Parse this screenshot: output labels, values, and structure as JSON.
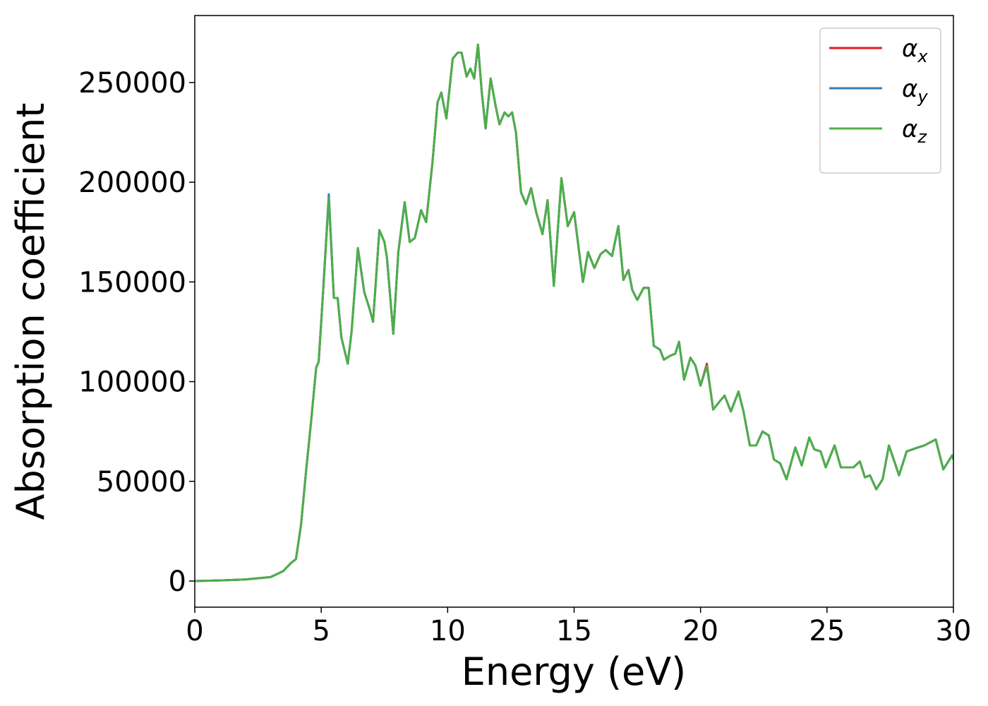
{
  "chart_data": {
    "type": "line",
    "xlabel": "Energy (eV)",
    "ylabel": "Absorption coefficient",
    "x": [
      0,
      1,
      2,
      3,
      3.5,
      3.8,
      4,
      4.2,
      4.4,
      4.6,
      4.8,
      4.9,
      5.05,
      5.3,
      5.5,
      5.65,
      5.8,
      6.05,
      6.2,
      6.45,
      6.7,
      6.9,
      7.05,
      7.3,
      7.5,
      7.6,
      7.85,
      8.05,
      8.3,
      8.5,
      8.7,
      8.95,
      9.15,
      9.4,
      9.6,
      9.75,
      9.95,
      10.2,
      10.4,
      10.55,
      10.75,
      10.9,
      11.05,
      11.2,
      11.35,
      11.5,
      11.7,
      11.9,
      12.05,
      12.25,
      12.4,
      12.55,
      12.7,
      12.9,
      13.1,
      13.3,
      13.5,
      13.75,
      13.95,
      14.2,
      14.5,
      14.75,
      15,
      15.2,
      15.35,
      15.55,
      15.8,
      16.05,
      16.25,
      16.5,
      16.75,
      16.95,
      17.15,
      17.3,
      17.5,
      17.75,
      17.95,
      18.15,
      18.4,
      18.55,
      18.8,
      19,
      19.15,
      19.35,
      19.6,
      19.8,
      20,
      20.25,
      20.5,
      20.75,
      20.95,
      21.2,
      21.5,
      21.7,
      21.95,
      22.2,
      22.45,
      22.7,
      22.9,
      23.15,
      23.4,
      23.75,
      24,
      24.3,
      24.5,
      24.75,
      24.95,
      25.3,
      25.55,
      25.85,
      26.05,
      26.3,
      26.5,
      26.7,
      26.95,
      27.2,
      27.45,
      27.85,
      28.15,
      28.6,
      28.85,
      29.3,
      29.6,
      29.95,
      30
    ],
    "series": [
      {
        "name": "αx",
        "color": "#e41a1c",
        "values": [
          0,
          300,
          800,
          2000,
          5000,
          9000,
          11000,
          28000,
          55000,
          80000,
          107000,
          110000,
          140000,
          192000,
          142000,
          142000,
          122000,
          109000,
          125000,
          167000,
          145000,
          137000,
          130000,
          176000,
          170000,
          162000,
          124000,
          165000,
          190000,
          170000,
          172000,
          186000,
          180000,
          210000,
          240000,
          245000,
          232000,
          262000,
          265000,
          265000,
          253000,
          257000,
          252000,
          269000,
          245000,
          227000,
          252000,
          238000,
          229000,
          235000,
          233000,
          235000,
          225000,
          195000,
          189000,
          197000,
          185000,
          174000,
          191000,
          148000,
          202000,
          178000,
          185000,
          165000,
          150000,
          165000,
          157000,
          164000,
          166000,
          163000,
          178000,
          151000,
          156000,
          146000,
          141000,
          147000,
          147000,
          118000,
          116000,
          111000,
          113000,
          114000,
          120000,
          101000,
          112000,
          108000,
          98000,
          109000,
          86000,
          90000,
          93000,
          85000,
          95000,
          85000,
          68000,
          68000,
          75000,
          73000,
          61000,
          59000,
          51000,
          67000,
          58000,
          72000,
          66000,
          65000,
          57000,
          68000,
          57000,
          57000,
          57000,
          60000,
          52000,
          53000,
          46000,
          51000,
          68000,
          53000,
          65000,
          67000,
          68000,
          71000,
          56000,
          63000,
          61000
        ]
      },
      {
        "name": "αy",
        "color": "#377eb8",
        "values": [
          0,
          300,
          800,
          2000,
          5000,
          9000,
          11000,
          28000,
          55000,
          80000,
          107000,
          110000,
          140000,
          194000,
          142000,
          142000,
          122000,
          109000,
          125000,
          167000,
          145000,
          137000,
          130000,
          176000,
          170000,
          162000,
          124000,
          165000,
          190000,
          170000,
          172000,
          186000,
          180000,
          210000,
          240000,
          245000,
          232000,
          262000,
          265000,
          265000,
          253000,
          257000,
          252000,
          269000,
          245000,
          227000,
          252000,
          238000,
          229000,
          235000,
          233000,
          235000,
          225000,
          195000,
          189000,
          197000,
          185000,
          174000,
          191000,
          148000,
          202000,
          178000,
          185000,
          165000,
          150000,
          165000,
          157000,
          164000,
          166000,
          163000,
          178000,
          151000,
          156000,
          146000,
          141000,
          147000,
          147000,
          118000,
          116000,
          111000,
          113000,
          114000,
          120000,
          101000,
          112000,
          108000,
          98000,
          108000,
          86000,
          90000,
          93000,
          85000,
          95000,
          85000,
          68000,
          68000,
          75000,
          73000,
          61000,
          59000,
          51000,
          67000,
          58000,
          72000,
          66000,
          65000,
          57000,
          68000,
          57000,
          57000,
          57000,
          60000,
          52000,
          53000,
          46000,
          51000,
          68000,
          53000,
          65000,
          67000,
          68000,
          71000,
          56000,
          63000,
          61000
        ]
      },
      {
        "name": "αz",
        "color": "#4daf4a",
        "values": [
          0,
          300,
          800,
          2000,
          5000,
          9000,
          11000,
          28000,
          55000,
          80000,
          107000,
          110000,
          140000,
          192000,
          142000,
          142000,
          122000,
          109000,
          125000,
          167000,
          145000,
          137000,
          130000,
          176000,
          170000,
          162000,
          124000,
          165000,
          190000,
          170000,
          172000,
          186000,
          180000,
          210000,
          240000,
          245000,
          232000,
          262000,
          265000,
          265000,
          253000,
          257000,
          252000,
          269000,
          245000,
          227000,
          252000,
          238000,
          229000,
          235000,
          233000,
          235000,
          225000,
          195000,
          189000,
          197000,
          185000,
          174000,
          191000,
          148000,
          202000,
          178000,
          185000,
          165000,
          150000,
          165000,
          157000,
          164000,
          166000,
          163000,
          178000,
          151000,
          156000,
          146000,
          141000,
          147000,
          147000,
          118000,
          116000,
          111000,
          113000,
          114000,
          120000,
          101000,
          112000,
          108000,
          98000,
          108000,
          86000,
          90000,
          93000,
          85000,
          95000,
          85000,
          68000,
          68000,
          75000,
          73000,
          61000,
          59000,
          51000,
          67000,
          58000,
          72000,
          66000,
          65000,
          57000,
          68000,
          57000,
          57000,
          57000,
          60000,
          52000,
          53000,
          46000,
          51000,
          68000,
          53000,
          65000,
          67000,
          68000,
          71000,
          56000,
          63000,
          61000
        ]
      }
    ],
    "xlim": [
      0,
      30
    ],
    "xticks": [
      0,
      5,
      10,
      15,
      20,
      25,
      30
    ],
    "ylim": [
      -13100,
      283600
    ],
    "yticks": [
      0,
      50000,
      100000,
      150000,
      200000,
      250000
    ],
    "grid": false,
    "legend": "upper right"
  }
}
